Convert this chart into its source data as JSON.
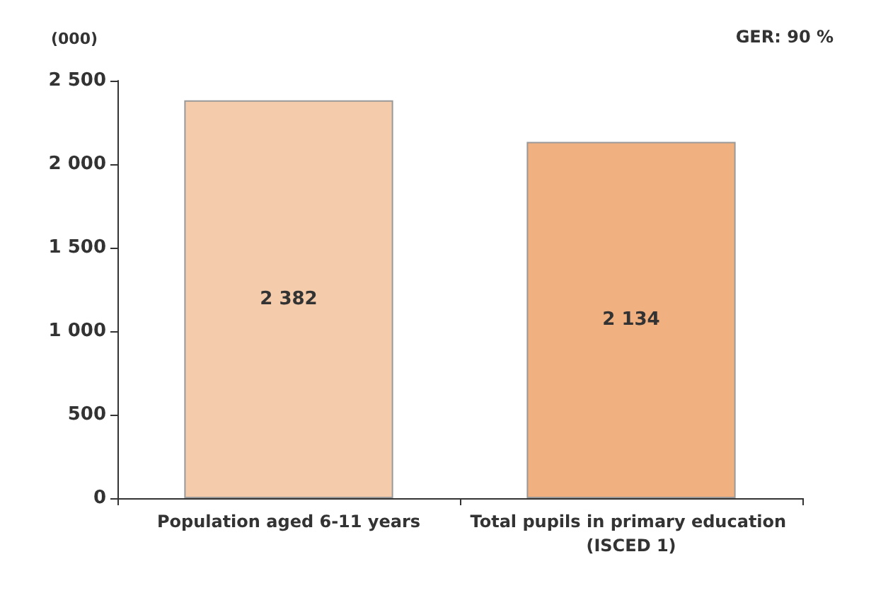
{
  "chart_data": {
    "type": "bar",
    "ylabel": "(000)",
    "annotations": [
      "GER: 90 %"
    ],
    "categories": [
      "Population aged 6-11 years",
      "Total pupils in primary education (ISCED 1)"
    ],
    "values": [
      2382,
      2134
    ],
    "colors": [
      "#f5ccab",
      "#f0b07f"
    ],
    "value_labels": [
      "2 382",
      "2 134"
    ],
    "ylim": [
      0,
      2500
    ],
    "yticks": [
      {
        "value": 0,
        "label": "0"
      },
      {
        "value": 500,
        "label": "500"
      },
      {
        "value": 1000,
        "label": "1 000"
      },
      {
        "value": 1500,
        "label": "1 500"
      },
      {
        "value": 2000,
        "label": "2 000"
      },
      {
        "value": 2500,
        "label": "2 500"
      }
    ],
    "grid": false
  }
}
